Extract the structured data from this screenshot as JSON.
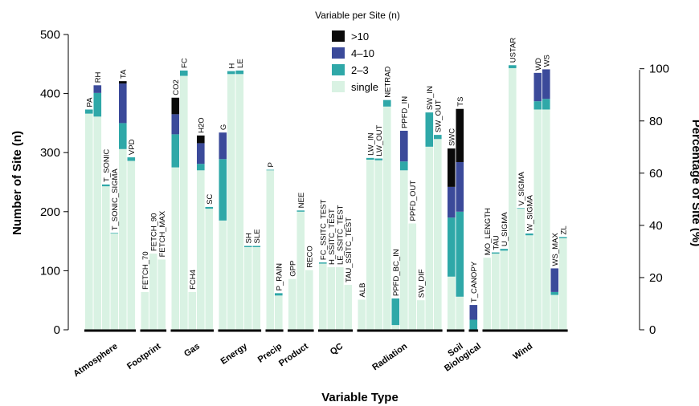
{
  "chart_data": {
    "type": "bar",
    "stacked": true,
    "xlabel": "Variable Type",
    "ylabel": "Number of Site (n)",
    "ylabel_right": "Percentage of Site (%)",
    "ylim": [
      0,
      500
    ],
    "yticks": [
      0,
      100,
      200,
      300,
      400,
      500
    ],
    "ylim_right": [
      0,
      100
    ],
    "yticks_right": [
      0,
      20,
      40,
      60,
      80,
      100
    ],
    "legend": {
      "title": "Variable per Site (n)",
      "position": "top-center",
      "entries": [
        ">10",
        "4–10",
        "2–3",
        "single"
      ]
    },
    "colors": {
      "gt10": "#0a0a0a",
      "4to10": "#3b4a9a",
      "2to3": "#2fa8a8",
      "single": "#d9f2e3"
    },
    "series_order": [
      "single",
      "2to3",
      "4to10",
      "gt10"
    ],
    "groups": [
      {
        "name": "Atmosphere",
        "variables": [
          {
            "label": "PA",
            "single": 366,
            "2to3": 7,
            "4to10": 0,
            "gt10": 0
          },
          {
            "label": "RH",
            "single": 361,
            "2to3": 40,
            "4to10": 13,
            "gt10": 0
          },
          {
            "label": "T_SONIC",
            "single": 243,
            "2to3": 3,
            "4to10": 0,
            "gt10": 0
          },
          {
            "label": "T_SONIC_SIGMA",
            "single": 163,
            "2to3": 1,
            "4to10": 0,
            "gt10": 0
          },
          {
            "label": "TA",
            "single": 306,
            "2to3": 44,
            "4to10": 67,
            "gt10": 4
          },
          {
            "label": "VPD",
            "single": 286,
            "2to3": 6,
            "4to10": 0,
            "gt10": 0
          }
        ]
      },
      {
        "name": "Footprint",
        "variables": [
          {
            "label": "FETCH_70",
            "single": 64,
            "2to3": 0,
            "4to10": 0,
            "gt10": 0
          },
          {
            "label": "FETCH_90",
            "single": 129,
            "2to3": 0,
            "4to10": 0,
            "gt10": 0
          },
          {
            "label": "FETCH_MAX",
            "single": 119,
            "2to3": 0,
            "4to10": 0,
            "gt10": 0
          }
        ]
      },
      {
        "name": "Gas",
        "variables": [
          {
            "label": "CO2",
            "single": 275,
            "2to3": 56,
            "4to10": 34,
            "gt10": 28
          },
          {
            "label": "FC",
            "single": 430,
            "2to3": 9,
            "4to10": 0,
            "gt10": 0
          },
          {
            "label": "FCH4",
            "single": 64,
            "2to3": 0,
            "4to10": 0,
            "gt10": 0
          },
          {
            "label": "H2O",
            "single": 270,
            "2to3": 11,
            "4to10": 35,
            "gt10": 13
          },
          {
            "label": "SC",
            "single": 205,
            "2to3": 3,
            "4to10": 0,
            "gt10": 0
          }
        ]
      },
      {
        "name": "Energy",
        "variables": [
          {
            "label": "G",
            "single": 185,
            "2to3": 104,
            "4to10": 45,
            "gt10": 0
          },
          {
            "label": "H",
            "single": 433,
            "2to3": 5,
            "4to10": 0,
            "gt10": 0
          },
          {
            "label": "LE",
            "single": 433,
            "2to3": 6,
            "4to10": 0,
            "gt10": 0
          },
          {
            "label": "SH",
            "single": 140,
            "2to3": 2,
            "4to10": 0,
            "gt10": 0
          },
          {
            "label": "SLE",
            "single": 140,
            "2to3": 2,
            "4to10": 0,
            "gt10": 0
          }
        ]
      },
      {
        "name": "Precip",
        "variables": [
          {
            "label": "P",
            "single": 270,
            "2to3": 1,
            "4to10": 0,
            "gt10": 0
          },
          {
            "label": "P_RAIN",
            "single": 58,
            "2to3": 4,
            "4to10": 0,
            "gt10": 0
          }
        ]
      },
      {
        "name": "Product",
        "variables": [
          {
            "label": "GPP",
            "single": 86,
            "2to3": 0,
            "4to10": 0,
            "gt10": 0
          },
          {
            "label": "NEE",
            "single": 200,
            "2to3": 2,
            "4to10": 0,
            "gt10": 0
          },
          {
            "label": "RECO",
            "single": 101,
            "2to3": 0,
            "4to10": 0,
            "gt10": 0
          }
        ]
      },
      {
        "name": "QC",
        "variables": [
          {
            "label": "FC_SSITC_TEST",
            "single": 112,
            "2to3": 2,
            "4to10": 0,
            "gt10": 0
          },
          {
            "label": "H_SSITC_TEST",
            "single": 106,
            "2to3": 0,
            "4to10": 0,
            "gt10": 0
          },
          {
            "label": "LE_SSITC_TEST",
            "single": 106,
            "2to3": 0,
            "4to10": 0,
            "gt10": 0
          },
          {
            "label": "TAU_SSITC_TEST",
            "single": 76,
            "2to3": 0,
            "4to10": 0,
            "gt10": 0
          }
        ]
      },
      {
        "name": "Radiation",
        "variables": [
          {
            "label": "ALB",
            "single": 51,
            "2to3": 0,
            "4to10": 0,
            "gt10": 0
          },
          {
            "label": "LW_IN",
            "single": 288,
            "2to3": 3,
            "4to10": 0,
            "gt10": 0
          },
          {
            "label": "LW_OUT",
            "single": 287,
            "2to3": 3,
            "4to10": 0,
            "gt10": 0
          },
          {
            "label": "NETRAD",
            "single": 378,
            "2to3": 11,
            "4to10": 0,
            "gt10": 0
          },
          {
            "label": "PPFD_BC_IN",
            "single": 8,
            "2to3": 45,
            "4to10": 0,
            "gt10": 0
          },
          {
            "label": "PPFD_IN",
            "single": 270,
            "2to3": 15,
            "4to10": 52,
            "gt10": 0
          },
          {
            "label": "PPFD_OUT",
            "single": 180,
            "2to3": 0,
            "4to10": 0,
            "gt10": 0
          },
          {
            "label": "SW_DIF",
            "single": 50,
            "2to3": 0,
            "4to10": 0,
            "gt10": 0
          },
          {
            "label": "SW_IN",
            "single": 310,
            "2to3": 58,
            "4to10": 0,
            "gt10": 0
          },
          {
            "label": "SW_OUT",
            "single": 323,
            "2to3": 7,
            "4to10": 0,
            "gt10": 0
          }
        ]
      },
      {
        "name": "Soil",
        "variables": [
          {
            "label": "SWC",
            "single": 90,
            "2to3": 100,
            "4to10": 52,
            "gt10": 65
          },
          {
            "label": "TS",
            "single": 56,
            "2to3": 144,
            "4to10": 84,
            "gt10": 90
          }
        ]
      },
      {
        "name": "Biological",
        "variables": [
          {
            "label": "T_CANOPY",
            "single": 0,
            "2to3": 17,
            "4to10": 25,
            "gt10": 0
          }
        ]
      },
      {
        "name": "Wind",
        "variables": [
          {
            "label": "MO_LENGTH",
            "single": 122,
            "2to3": 0,
            "4to10": 0,
            "gt10": 0
          },
          {
            "label": "TAU",
            "single": 129,
            "2to3": 2,
            "4to10": 0,
            "gt10": 0
          },
          {
            "label": "U_SIGMA",
            "single": 134,
            "2to3": 3,
            "4to10": 0,
            "gt10": 0
          },
          {
            "label": "USTAR",
            "single": 443,
            "2to3": 5,
            "4to10": 0,
            "gt10": 0
          },
          {
            "label": "V_SIGMA",
            "single": 205,
            "2to3": 1,
            "4to10": 0,
            "gt10": 0
          },
          {
            "label": "W_SIGMA",
            "single": 160,
            "2to3": 3,
            "4to10": 0,
            "gt10": 0
          },
          {
            "label": "WD",
            "single": 373,
            "2to3": 14,
            "4to10": 48,
            "gt10": 0
          },
          {
            "label": "WS",
            "single": 373,
            "2to3": 18,
            "4to10": 50,
            "gt10": 0
          },
          {
            "label": "WS_MAX",
            "single": 59,
            "2to3": 5,
            "4to10": 40,
            "gt10": 0
          },
          {
            "label": "ZL",
            "single": 155,
            "2to3": 2,
            "4to10": 0,
            "gt10": 0
          }
        ]
      }
    ]
  }
}
